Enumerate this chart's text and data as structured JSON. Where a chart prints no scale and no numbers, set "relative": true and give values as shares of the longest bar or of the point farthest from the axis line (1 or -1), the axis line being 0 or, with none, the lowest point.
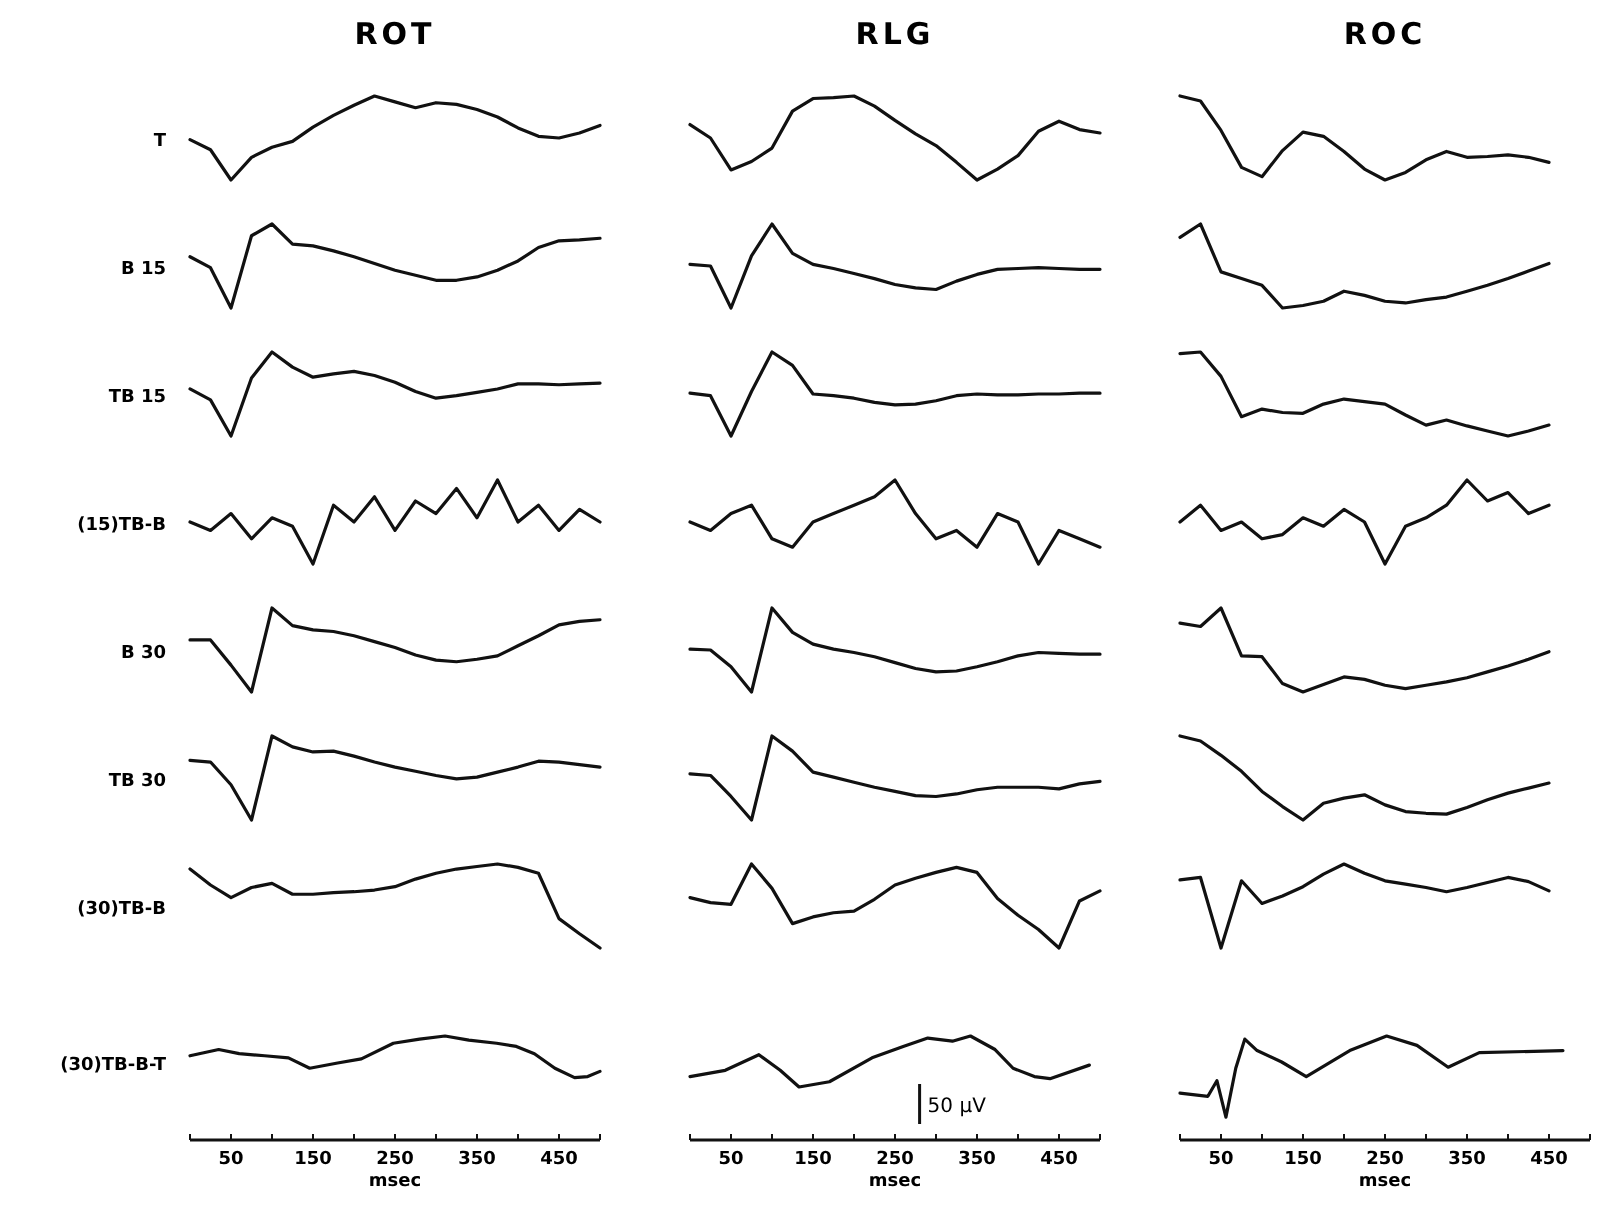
{
  "chart_data": [
    {
      "type": "line",
      "relative": true,
      "title": "ROT",
      "ylabel": "T",
      "color": "#111111",
      "categories": [
        null,
        null,
        null,
        null,
        null,
        null,
        null,
        null,
        null,
        null,
        null,
        null,
        null,
        null,
        null,
        null,
        null,
        null,
        null,
        null,
        null
      ],
      "values": [
        0.48,
        0.36,
        0,
        0.27,
        0.39,
        0.46,
        0.63,
        0.77,
        0.89,
        1,
        0.93,
        0.86,
        0.92,
        0.9,
        0.84,
        0.75,
        0.62,
        0.52,
        0.5,
        0.56,
        0.65
      ]
    },
    {
      "type": "line",
      "relative": true,
      "title": "RLG",
      "color": "#111111",
      "categories": [
        null,
        null,
        null,
        null,
        null,
        null,
        null,
        null,
        null,
        null,
        null,
        null,
        null,
        null,
        null,
        null,
        null,
        null,
        null,
        null,
        null
      ],
      "values": [
        0.66,
        0.5,
        0.12,
        0.22,
        0.38,
        0.82,
        0.97,
        0.98,
        1,
        0.88,
        0.71,
        0.55,
        0.41,
        0.21,
        0,
        0.13,
        0.29,
        0.58,
        0.7,
        0.6,
        0.56
      ]
    },
    {
      "type": "line",
      "relative": true,
      "title": "ROC",
      "color": "#111111",
      "categories": [
        null,
        null,
        null,
        null,
        null,
        null,
        null,
        null,
        null,
        null,
        null,
        null,
        null,
        null,
        null,
        null,
        null,
        null,
        null
      ],
      "values": [
        1,
        0.94,
        0.59,
        0.15,
        0.04,
        0.35,
        0.57,
        0.52,
        0.34,
        0.13,
        0,
        0.09,
        0.24,
        0.34,
        0.27,
        0.28,
        0.3,
        0.27,
        0.21
      ]
    },
    {
      "type": "line",
      "relative": true,
      "ylabel": "B 15",
      "color": "#111111",
      "categories": [
        null,
        null,
        null,
        null,
        null,
        null,
        null,
        null,
        null,
        null,
        null,
        null,
        null,
        null,
        null,
        null,
        null,
        null,
        null,
        null,
        null
      ],
      "values": [
        0.61,
        0.48,
        0,
        0.86,
        1,
        0.76,
        0.74,
        0.68,
        0.61,
        0.53,
        0.45,
        0.39,
        0.33,
        0.33,
        0.37,
        0.45,
        0.56,
        0.72,
        0.8,
        0.81,
        0.83
      ]
    },
    {
      "type": "line",
      "relative": true,
      "color": "#111111",
      "categories": [
        null,
        null,
        null,
        null,
        null,
        null,
        null,
        null,
        null,
        null,
        null,
        null,
        null,
        null,
        null,
        null,
        null,
        null,
        null,
        null,
        null
      ],
      "values": [
        0.52,
        0.5,
        0,
        0.62,
        1,
        0.65,
        0.52,
        0.47,
        0.41,
        0.35,
        0.28,
        0.24,
        0.22,
        0.32,
        0.4,
        0.46,
        0.47,
        0.48,
        0.47,
        0.46,
        0.46
      ]
    },
    {
      "type": "line",
      "relative": true,
      "color": "#111111",
      "categories": [
        null,
        null,
        null,
        null,
        null,
        null,
        null,
        null,
        null,
        null,
        null,
        null,
        null,
        null,
        null,
        null,
        null,
        null,
        null
      ],
      "values": [
        0.84,
        1,
        0.43,
        0.35,
        0.27,
        0,
        0.03,
        0.08,
        0.2,
        0.15,
        0.08,
        0.06,
        0.1,
        0.13,
        0.2,
        0.27,
        0.35,
        0.44,
        0.53
      ]
    },
    {
      "type": "line",
      "relative": true,
      "ylabel": "TB 15",
      "color": "#111111",
      "categories": [
        null,
        null,
        null,
        null,
        null,
        null,
        null,
        null,
        null,
        null,
        null,
        null,
        null,
        null,
        null,
        null,
        null,
        null,
        null,
        null,
        null
      ],
      "values": [
        0.56,
        0.43,
        0,
        0.69,
        1,
        0.82,
        0.7,
        0.74,
        0.77,
        0.72,
        0.64,
        0.53,
        0.45,
        0.48,
        0.52,
        0.56,
        0.62,
        0.62,
        0.61,
        0.62,
        0.63
      ]
    },
    {
      "type": "line",
      "relative": true,
      "color": "#111111",
      "categories": [
        null,
        null,
        null,
        null,
        null,
        null,
        null,
        null,
        null,
        null,
        null,
        null,
        null,
        null,
        null,
        null,
        null,
        null,
        null,
        null,
        null
      ],
      "values": [
        0.51,
        0.48,
        0,
        0.53,
        1,
        0.84,
        0.5,
        0.48,
        0.45,
        0.4,
        0.37,
        0.38,
        0.42,
        0.48,
        0.5,
        0.49,
        0.49,
        0.5,
        0.5,
        0.51,
        0.51
      ]
    },
    {
      "type": "line",
      "relative": true,
      "color": "#111111",
      "categories": [
        null,
        null,
        null,
        null,
        null,
        null,
        null,
        null,
        null,
        null,
        null,
        null,
        null,
        null,
        null,
        null,
        null,
        null,
        null
      ],
      "values": [
        0.98,
        1,
        0.71,
        0.23,
        0.32,
        0.28,
        0.27,
        0.38,
        0.44,
        0.41,
        0.38,
        0.25,
        0.13,
        0.19,
        0.12,
        0.06,
        0,
        0.06,
        0.13
      ]
    },
    {
      "type": "line",
      "relative": true,
      "ylabel": "(15)TB-B",
      "color": "#111111",
      "categories": [
        null,
        null,
        null,
        null,
        null,
        null,
        null,
        null,
        null,
        null,
        null,
        null,
        null,
        null,
        null,
        null,
        null,
        null,
        null,
        null,
        null
      ],
      "values": [
        0.5,
        0.4,
        0.6,
        0.3,
        0.55,
        0.45,
        0,
        0.7,
        0.5,
        0.8,
        0.4,
        0.75,
        0.6,
        0.9,
        0.55,
        1,
        0.5,
        0.7,
        0.4,
        0.65,
        0.5
      ]
    },
    {
      "type": "line",
      "relative": true,
      "color": "#111111",
      "categories": [
        null,
        null,
        null,
        null,
        null,
        null,
        null,
        null,
        null,
        null,
        null,
        null,
        null,
        null,
        null,
        null,
        null,
        null,
        null,
        null,
        null
      ],
      "values": [
        0.5,
        0.4,
        0.6,
        0.7,
        0.3,
        0.2,
        0.5,
        0.6,
        0.7,
        0.8,
        1,
        0.6,
        0.3,
        0.4,
        0.2,
        0.6,
        0.5,
        0,
        0.4,
        0.3,
        0.2
      ]
    },
    {
      "type": "line",
      "relative": true,
      "color": "#111111",
      "categories": [
        null,
        null,
        null,
        null,
        null,
        null,
        null,
        null,
        null,
        null,
        null,
        null,
        null,
        null,
        null,
        null,
        null,
        null,
        null
      ],
      "values": [
        0.5,
        0.7,
        0.4,
        0.5,
        0.3,
        0.35,
        0.55,
        0.45,
        0.65,
        0.5,
        0,
        0.45,
        0.55,
        0.7,
        1,
        0.75,
        0.85,
        0.6,
        0.7
      ]
    },
    {
      "type": "line",
      "relative": true,
      "ylabel": "B 30",
      "color": "#111111",
      "categories": [
        null,
        null,
        null,
        null,
        null,
        null,
        null,
        null,
        null,
        null,
        null,
        null,
        null,
        null,
        null,
        null,
        null,
        null,
        null,
        null,
        null
      ],
      "values": [
        0.62,
        0.62,
        0.32,
        0,
        1,
        0.79,
        0.74,
        0.72,
        0.67,
        0.6,
        0.53,
        0.44,
        0.38,
        0.36,
        0.39,
        0.43,
        0.55,
        0.67,
        0.8,
        0.84,
        0.86
      ]
    },
    {
      "type": "line",
      "relative": true,
      "color": "#111111",
      "categories": [
        null,
        null,
        null,
        null,
        null,
        null,
        null,
        null,
        null,
        null,
        null,
        null,
        null,
        null,
        null,
        null,
        null,
        null,
        null,
        null,
        null
      ],
      "values": [
        0.51,
        0.5,
        0.3,
        0,
        1,
        0.71,
        0.57,
        0.51,
        0.47,
        0.42,
        0.35,
        0.28,
        0.24,
        0.25,
        0.3,
        0.36,
        0.43,
        0.47,
        0.46,
        0.45,
        0.45
      ]
    },
    {
      "type": "line",
      "relative": true,
      "color": "#111111",
      "categories": [
        null,
        null,
        null,
        null,
        null,
        null,
        null,
        null,
        null,
        null,
        null,
        null,
        null,
        null,
        null,
        null,
        null,
        null,
        null
      ],
      "values": [
        0.82,
        0.78,
        1,
        0.43,
        0.42,
        0.1,
        0,
        0.09,
        0.18,
        0.15,
        0.08,
        0.04,
        0.08,
        0.12,
        0.17,
        0.24,
        0.31,
        0.39,
        0.48
      ]
    },
    {
      "type": "line",
      "relative": true,
      "ylabel": "TB 30",
      "color": "#111111",
      "categories": [
        null,
        null,
        null,
        null,
        null,
        null,
        null,
        null,
        null,
        null,
        null,
        null,
        null,
        null,
        null,
        null,
        null,
        null,
        null,
        null,
        null
      ],
      "values": [
        0.71,
        0.69,
        0.42,
        0,
        1,
        0.87,
        0.81,
        0.82,
        0.76,
        0.69,
        0.63,
        0.58,
        0.53,
        0.49,
        0.51,
        0.57,
        0.63,
        0.7,
        0.69,
        0.66,
        0.63
      ]
    },
    {
      "type": "line",
      "relative": true,
      "color": "#111111",
      "categories": [
        null,
        null,
        null,
        null,
        null,
        null,
        null,
        null,
        null,
        null,
        null,
        null,
        null,
        null,
        null,
        null,
        null,
        null,
        null,
        null,
        null
      ],
      "values": [
        0.55,
        0.53,
        0.28,
        0,
        1,
        0.82,
        0.57,
        0.51,
        0.45,
        0.39,
        0.34,
        0.29,
        0.28,
        0.31,
        0.36,
        0.39,
        0.39,
        0.39,
        0.37,
        0.43,
        0.46
      ]
    },
    {
      "type": "line",
      "relative": true,
      "color": "#111111",
      "categories": [
        null,
        null,
        null,
        null,
        null,
        null,
        null,
        null,
        null,
        null,
        null,
        null,
        null,
        null,
        null,
        null,
        null,
        null,
        null
      ],
      "values": [
        1,
        0.94,
        0.77,
        0.58,
        0.34,
        0.16,
        0,
        0.2,
        0.26,
        0.3,
        0.18,
        0.1,
        0.08,
        0.07,
        0.15,
        0.24,
        0.32,
        0.38,
        0.44
      ]
    },
    {
      "type": "line",
      "relative": true,
      "ylabel": "(30)TB-B",
      "color": "#111111",
      "categories": [
        null,
        null,
        null,
        null,
        null,
        null,
        null,
        null,
        null,
        null,
        null,
        null,
        null,
        null,
        null,
        null,
        null,
        null,
        null,
        null,
        null
      ],
      "values": [
        0.94,
        0.75,
        0.6,
        0.72,
        0.77,
        0.64,
        0.64,
        0.66,
        0.67,
        0.69,
        0.73,
        0.82,
        0.89,
        0.94,
        0.97,
        1,
        0.96,
        0.89,
        0.35,
        0.17,
        0
      ]
    },
    {
      "type": "line",
      "relative": true,
      "color": "#111111",
      "categories": [
        null,
        null,
        null,
        null,
        null,
        null,
        null,
        null,
        null,
        null,
        null,
        null,
        null,
        null,
        null,
        null,
        null,
        null,
        null,
        null,
        null
      ],
      "values": [
        0.6,
        0.54,
        0.52,
        1,
        0.71,
        0.29,
        0.37,
        0.42,
        0.44,
        0.58,
        0.75,
        0.83,
        0.9,
        0.96,
        0.9,
        0.59,
        0.39,
        0.22,
        0,
        0.56,
        0.68
      ]
    },
    {
      "type": "line",
      "relative": true,
      "color": "#111111",
      "categories": [
        null,
        null,
        null,
        null,
        null,
        null,
        null,
        null,
        null,
        null,
        null,
        null,
        null,
        null,
        null,
        null,
        null,
        null,
        null
      ],
      "values": [
        0.81,
        0.84,
        0,
        0.8,
        0.53,
        0.62,
        0.73,
        0.88,
        1,
        0.89,
        0.8,
        0.76,
        0.72,
        0.67,
        0.72,
        0.78,
        0.84,
        0.79,
        0.68
      ]
    },
    {
      "type": "line",
      "relative": true,
      "ylabel": "(30)TB-B-T",
      "color": "#111111",
      "xlim": [
        0,
        500
      ],
      "xlabel": "msec",
      "xticks": [
        {
          "value": 0,
          "label": null
        },
        50,
        {
          "value": 100,
          "label": null
        },
        150,
        {
          "value": 200,
          "label": null
        },
        250,
        {
          "value": 300,
          "label": null
        },
        350,
        {
          "value": 400,
          "label": null
        },
        450,
        {
          "value": 500,
          "label": null
        }
      ],
      "x": [
        0,
        35,
        60,
        91,
        120,
        146,
        180,
        209,
        248,
        280,
        311,
        340,
        374,
        398,
        420,
        445,
        469,
        485,
        500
      ],
      "values": [
        0.81,
        0.87,
        0.83,
        0.81,
        0.79,
        0.69,
        0.74,
        0.78,
        0.93,
        0.97,
        1,
        0.96,
        0.93,
        0.9,
        0.83,
        0.69,
        0.6,
        0.61,
        0.66
      ]
    },
    {
      "type": "line",
      "relative": true,
      "color": "#111111",
      "xlim": [
        0,
        500
      ],
      "xlabel": "msec",
      "annotations": [
        "50 µV"
      ],
      "xticks": [
        {
          "value": 0,
          "label": null
        },
        50,
        {
          "value": 100,
          "label": null
        },
        150,
        {
          "value": 200,
          "label": null
        },
        250,
        {
          "value": 300,
          "label": null
        },
        350,
        {
          "value": 400,
          "label": null
        },
        450,
        {
          "value": 500,
          "label": null
        }
      ],
      "x": [
        0,
        43,
        84,
        110,
        133,
        170,
        222,
        260,
        290,
        320,
        342,
        372,
        394,
        420,
        439,
        487
      ],
      "values": [
        0.61,
        0.67,
        0.82,
        0.67,
        0.51,
        0.56,
        0.79,
        0.9,
        0.98,
        0.95,
        1,
        0.87,
        0.69,
        0.61,
        0.59,
        0.72
      ]
    },
    {
      "type": "line",
      "relative": true,
      "color": "#111111",
      "xlim": [
        0,
        500
      ],
      "xlabel": "msec",
      "xticks": [
        {
          "value": 0,
          "label": null
        },
        50,
        {
          "value": 100,
          "label": null
        },
        150,
        {
          "value": 200,
          "label": null
        },
        250,
        {
          "value": 300,
          "label": null
        },
        350,
        {
          "value": 400,
          "label": null
        },
        450,
        {
          "value": 500,
          "label": null
        }
      ],
      "x": [
        0,
        34,
        45,
        56,
        68,
        79,
        94,
        124,
        154,
        207,
        252,
        289,
        327,
        365,
        467
      ],
      "values": [
        0.45,
        0.42,
        0.57,
        0.22,
        0.69,
        0.97,
        0.86,
        0.75,
        0.61,
        0.86,
        1,
        0.91,
        0.7,
        0.84,
        0.86
      ]
    }
  ]
}
